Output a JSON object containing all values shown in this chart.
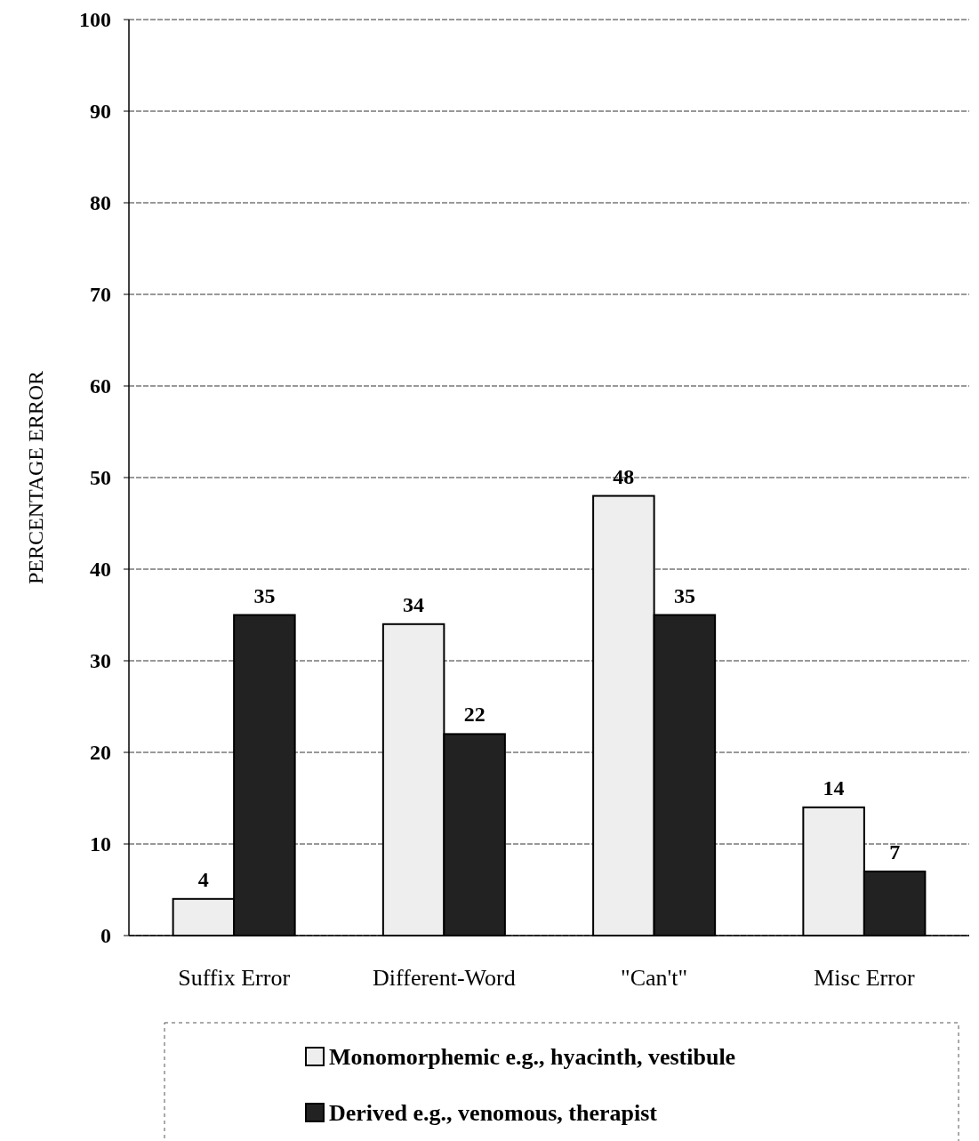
{
  "chart_data": {
    "type": "bar",
    "ylabel": "PERCENTAGE ERROR",
    "categories": [
      "Suffix Error",
      "Different-Word",
      "\"Can't\"",
      "Misc Error"
    ],
    "series": [
      {
        "name": "Monomorphemic  e.g., hyacinth, vestibule",
        "color": "#eeeeee",
        "values": [
          4,
          34,
          48,
          14
        ]
      },
      {
        "name": "Derived  e.g., venomous, therapist",
        "color": "#222222",
        "values": [
          35,
          22,
          35,
          7
        ]
      }
    ],
    "ylim": [
      0,
      100
    ],
    "yticks": [
      0,
      10,
      20,
      30,
      40,
      50,
      60,
      70,
      80,
      90,
      100
    ],
    "grid": "y",
    "legend": "bottom",
    "data_labels": true
  }
}
